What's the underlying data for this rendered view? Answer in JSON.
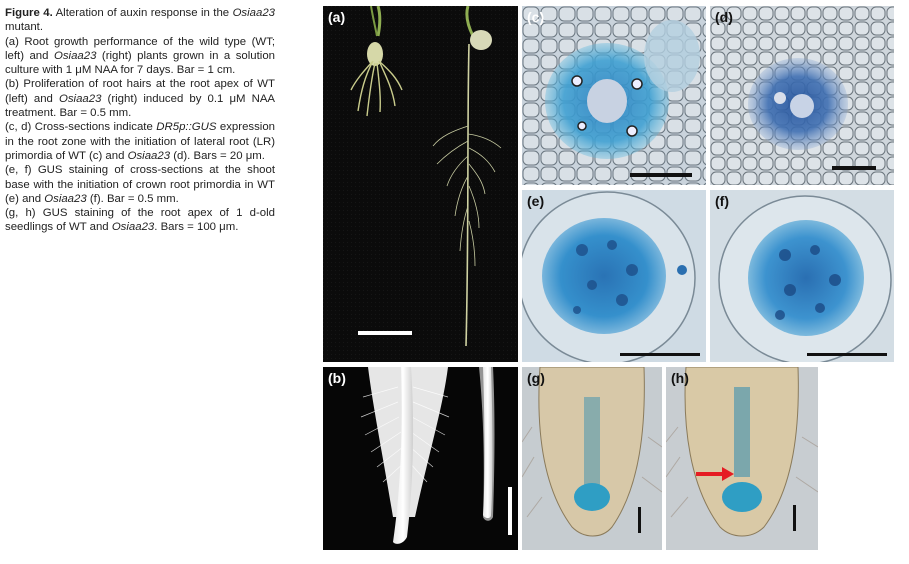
{
  "caption": {
    "figure_label": "Figure 4.",
    "title_text": "Alteration of auxin response in the",
    "title_italic": "Osiaa23",
    "title_end": "mutant.",
    "a_1": "(a) Root growth performance of the wild type (WT; left) and",
    "a_italic": "Osiaa23",
    "a_2": "(right) plants grown in a solution culture with 1 μM NAA for 7 days. Bar = 1 cm.",
    "b_1": "(b) Proliferation of root hairs at the root apex of WT (left) and",
    "b_italic": "Osiaa23",
    "b_2": "(right) induced by 0.1 μM NAA treatment. Bar = 0.5 mm.",
    "cd_1": "(c, d) Cross-sections indicate",
    "cd_italic": "DR5p::GUS",
    "cd_2": "expression in the root zone with the initiation of lateral root (LR) primordia of WT (c) and",
    "cd_italic2": "Osiaa23",
    "cd_3": "(d). Bars = 20 μm.",
    "ef_1": "(e, f) GUS staining of cross-sections at the shoot base with the initiation of crown root primordia in WT (e) and",
    "ef_italic": "Osiaa23",
    "ef_2": "(f). Bar = 0.5 mm.",
    "gh_1": "(g, h) GUS staining of the root apex of 1 d-old seedlings of WT and",
    "gh_italic": "Osiaa23",
    "gh_2": ". Bars = 100 μm."
  },
  "panels": {
    "a": "(a)",
    "b": "(b)",
    "c": "(c)",
    "d": "(d)",
    "e": "(e)",
    "f": "(f)",
    "g": "(g)",
    "h": "(h)"
  }
}
